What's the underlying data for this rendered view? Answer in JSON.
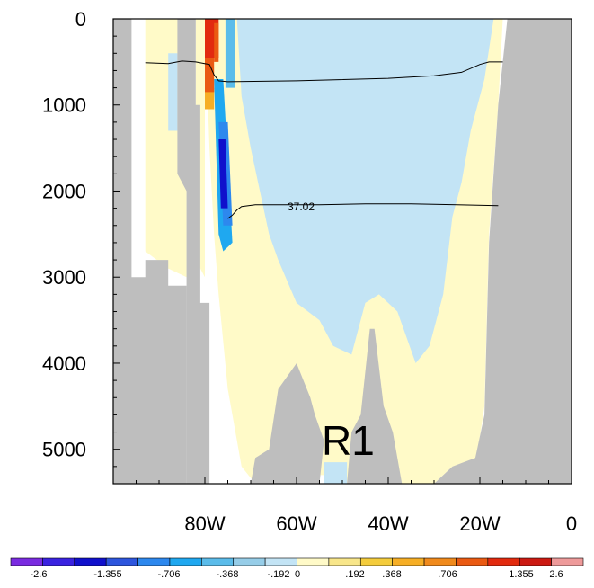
{
  "chart_data": {
    "type": "heatmap",
    "title": "",
    "xlabel": "",
    "ylabel": "",
    "annotation": "R1",
    "contour_label": "37.02",
    "x_ticks": [
      {
        "label": "80W",
        "value": -80
      },
      {
        "label": "60W",
        "value": -60
      },
      {
        "label": "40W",
        "value": -40
      },
      {
        "label": "20W",
        "value": -20
      },
      {
        "label": "0",
        "value": 0
      }
    ],
    "y_ticks": [
      {
        "label": "0",
        "value": 0
      },
      {
        "label": "1000",
        "value": 1000
      },
      {
        "label": "2000",
        "value": 2000
      },
      {
        "label": "3000",
        "value": 3000
      },
      {
        "label": "4000",
        "value": 4000
      },
      {
        "label": "5000",
        "value": 5000
      }
    ],
    "xlim": [
      -100,
      0
    ],
    "ylim": [
      5400,
      0
    ],
    "y_inverted": true,
    "colorbar": {
      "labels": [
        "-2.6",
        "-1.355",
        "-.706",
        "-.368",
        "-.192",
        "0",
        ".192",
        ".368",
        ".706",
        "1.355",
        "2.6"
      ],
      "colors": [
        "#7a2be0",
        "#3a22e0",
        "#1010cc",
        "#2d55dd",
        "#2d88ee",
        "#1fa8f0",
        "#5bbcea",
        "#96cde8",
        "#c3e4f5",
        "#fffac8",
        "#f8e68a",
        "#f4cc3c",
        "#f6ae25",
        "#f08a1c",
        "#ea5a12",
        "#e22a0e",
        "#cc1a12",
        "#ee9a9a"
      ]
    },
    "land_color": "#bebebe",
    "contours": [
      {
        "points": [
          [
            -93,
            510
          ],
          [
            -88,
            520
          ],
          [
            -85,
            490
          ],
          [
            -82,
            500
          ],
          [
            -79,
            530
          ],
          [
            -78,
            650
          ],
          [
            -77,
            720
          ],
          [
            -75,
            730
          ],
          [
            -60,
            720
          ],
          [
            -40,
            690
          ],
          [
            -30,
            660
          ],
          [
            -24,
            620
          ],
          [
            -20,
            530
          ],
          [
            -18,
            500
          ],
          [
            -15,
            500
          ]
        ]
      },
      {
        "points": [
          [
            -75,
            2320
          ],
          [
            -74,
            2280
          ],
          [
            -73,
            2220
          ],
          [
            -72,
            2180
          ],
          [
            -69,
            2160
          ],
          [
            -55,
            2160
          ],
          [
            -45,
            2150
          ],
          [
            -35,
            2150
          ],
          [
            -25,
            2160
          ],
          [
            -16,
            2170
          ]
        ]
      }
    ],
    "regions": [
      {
        "value": 0.05,
        "points": [
          [
            -93,
            0
          ],
          [
            -84,
            0
          ],
          [
            -84,
            3000
          ],
          [
            -88,
            2900
          ],
          [
            -93,
            2700
          ],
          [
            -93,
            1500
          ]
        ]
      },
      {
        "value": 0.05,
        "points": [
          [
            -82,
            0
          ],
          [
            -80,
            0
          ],
          [
            -80,
            3000
          ],
          [
            -82,
            2800
          ]
        ]
      },
      {
        "value": 0.05,
        "points": [
          [
            -80,
            0
          ],
          [
            -15,
            0
          ],
          [
            -16,
            1000
          ],
          [
            -18,
            2500
          ],
          [
            -19,
            4500
          ],
          [
            -21,
            5200
          ],
          [
            -26,
            5200
          ],
          [
            -30,
            5400
          ],
          [
            -50,
            5400
          ],
          [
            -54,
            5300
          ],
          [
            -62,
            5300
          ],
          [
            -69,
            5400
          ],
          [
            -72,
            5200
          ],
          [
            -75,
            4300
          ],
          [
            -77,
            3200
          ],
          [
            -78,
            2500
          ],
          [
            -79,
            1500
          ]
        ]
      },
      {
        "value": -0.1,
        "points": [
          [
            -88,
            400
          ],
          [
            -86,
            400
          ],
          [
            -86,
            1300
          ],
          [
            -88,
            1300
          ]
        ]
      },
      {
        "value": -0.1,
        "points": [
          [
            -73,
            0
          ],
          [
            -17,
            0
          ],
          [
            -19,
            700
          ],
          [
            -22,
            1300
          ],
          [
            -24,
            1900
          ],
          [
            -26,
            2300
          ],
          [
            -28,
            3200
          ],
          [
            -31,
            3800
          ],
          [
            -34,
            4000
          ],
          [
            -38,
            3400
          ],
          [
            -42,
            3200
          ],
          [
            -45,
            3300
          ],
          [
            -48,
            3900
          ],
          [
            -52,
            3800
          ],
          [
            -55,
            3500
          ],
          [
            -60,
            3300
          ],
          [
            -64,
            2800
          ],
          [
            -66,
            2500
          ],
          [
            -68,
            2000
          ],
          [
            -70,
            1500
          ],
          [
            -72,
            900
          ]
        ]
      },
      {
        "value": -0.1,
        "points": [
          [
            -54,
            5150
          ],
          [
            -49,
            5150
          ],
          [
            -49,
            5400
          ],
          [
            -54,
            5400
          ]
        ]
      },
      {
        "value": -0.45,
        "points": [
          [
            -78,
            700
          ],
          [
            -76,
            700
          ],
          [
            -74,
            2600
          ],
          [
            -76,
            2700
          ],
          [
            -77,
            2500
          ]
        ]
      },
      {
        "value": -0.9,
        "points": [
          [
            -77,
            1200
          ],
          [
            -75,
            1200
          ],
          [
            -74,
            2400
          ],
          [
            -76,
            2400
          ]
        ]
      },
      {
        "value": -1.6,
        "points": [
          [
            -77,
            1400
          ],
          [
            -75.5,
            1400
          ],
          [
            -75,
            2200
          ],
          [
            -76.5,
            2200
          ]
        ]
      },
      {
        "value": -0.3,
        "points": [
          [
            -75.5,
            0
          ],
          [
            -73.5,
            0
          ],
          [
            -73.5,
            800
          ],
          [
            -75.5,
            800
          ]
        ]
      },
      {
        "value": 0.3,
        "points": [
          [
            -80,
            800
          ],
          [
            -78,
            800
          ],
          [
            -78,
            1050
          ],
          [
            -80,
            1050
          ]
        ]
      },
      {
        "value": 0.9,
        "points": [
          [
            -80,
            250
          ],
          [
            -78,
            250
          ],
          [
            -78,
            850
          ],
          [
            -80,
            850
          ]
        ]
      },
      {
        "value": 1.6,
        "points": [
          [
            -80,
            0
          ],
          [
            -77,
            0
          ],
          [
            -77,
            450
          ],
          [
            -80,
            450
          ]
        ]
      },
      {
        "value": 1.0,
        "points": [
          [
            -78,
            50
          ],
          [
            -77,
            50
          ],
          [
            -77,
            500
          ],
          [
            -78,
            500
          ]
        ]
      }
    ],
    "land": [
      {
        "points": [
          [
            -100,
            0
          ],
          [
            -96,
            0
          ],
          [
            -96,
            3000
          ],
          [
            -93,
            3000
          ],
          [
            -93,
            2800
          ],
          [
            -88,
            2800
          ],
          [
            -88,
            3100
          ],
          [
            -84,
            3100
          ],
          [
            -84,
            5400
          ],
          [
            -100,
            5400
          ]
        ]
      },
      {
        "points": [
          [
            -86,
            0
          ],
          [
            -82,
            0
          ],
          [
            -82,
            1000
          ],
          [
            -81,
            1000
          ],
          [
            -81,
            3300
          ],
          [
            -79,
            3300
          ],
          [
            -79,
            5400
          ],
          [
            -84,
            5400
          ],
          [
            -84,
            2000
          ],
          [
            -86,
            1800
          ]
        ]
      },
      {
        "points": [
          [
            -70,
            5400
          ],
          [
            -69,
            5100
          ],
          [
            -66,
            5000
          ],
          [
            -64,
            4300
          ],
          [
            -60,
            4000
          ],
          [
            -57,
            4400
          ],
          [
            -56,
            4600
          ],
          [
            -54,
            4900
          ],
          [
            -55,
            5400
          ]
        ]
      },
      {
        "points": [
          [
            -49,
            5400
          ],
          [
            -48,
            4800
          ],
          [
            -46,
            4600
          ],
          [
            -44,
            3600
          ],
          [
            -43,
            3600
          ],
          [
            -41,
            4500
          ],
          [
            -39,
            4800
          ],
          [
            -37,
            5400
          ]
        ]
      },
      {
        "points": [
          [
            -30,
            5400
          ],
          [
            -26,
            5200
          ],
          [
            -21,
            5100
          ],
          [
            -19,
            4600
          ],
          [
            -18,
            2600
          ],
          [
            -16,
            1000
          ],
          [
            -14,
            0
          ],
          [
            0,
            0
          ],
          [
            0,
            5400
          ]
        ]
      }
    ]
  }
}
